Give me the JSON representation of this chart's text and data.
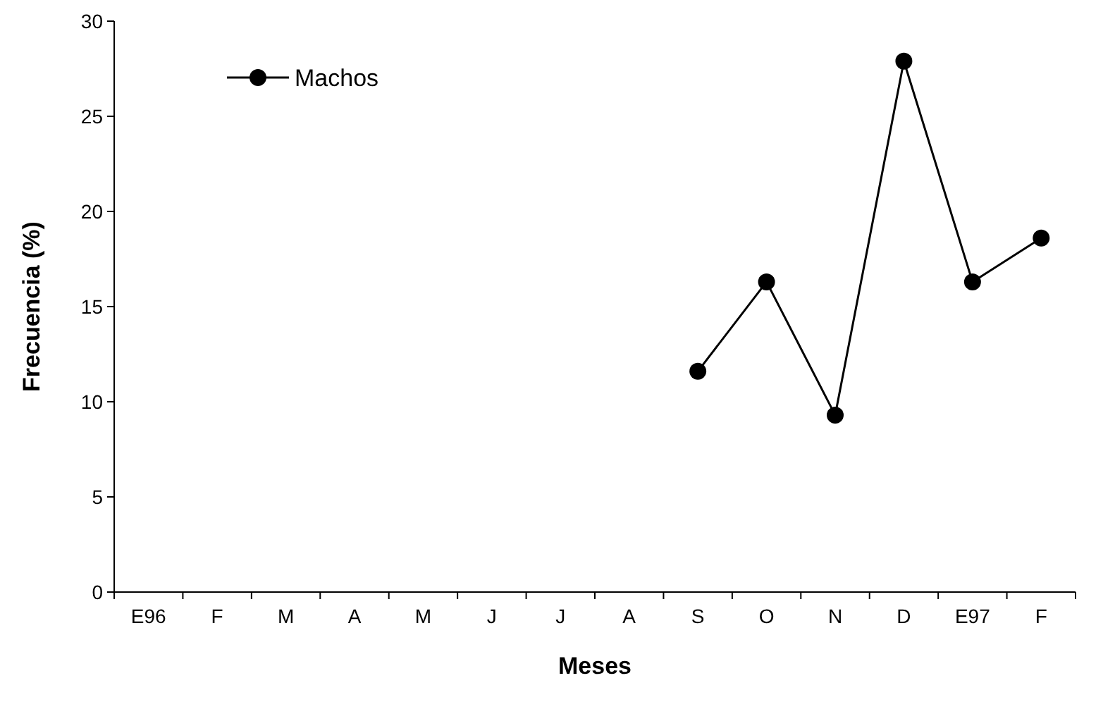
{
  "chart_data": {
    "type": "line",
    "xlabel": "Meses",
    "ylabel": "Frecuencia (%)",
    "categories": [
      "E96",
      "F",
      "M",
      "A",
      "M",
      "J",
      "J",
      "A",
      "S",
      "O",
      "N",
      "D",
      "E97",
      "F"
    ],
    "series": [
      {
        "name": "Machos",
        "color": "#000000",
        "values": [
          null,
          null,
          null,
          null,
          null,
          null,
          null,
          null,
          11.6,
          16.3,
          9.3,
          27.9,
          16.3,
          18.6
        ]
      }
    ],
    "ylim": [
      0,
      30
    ],
    "yticks": [
      0,
      5,
      10,
      15,
      20,
      25,
      30
    ],
    "grid": false,
    "legend": "top left",
    "marker": "circle",
    "line_style": "solid"
  }
}
